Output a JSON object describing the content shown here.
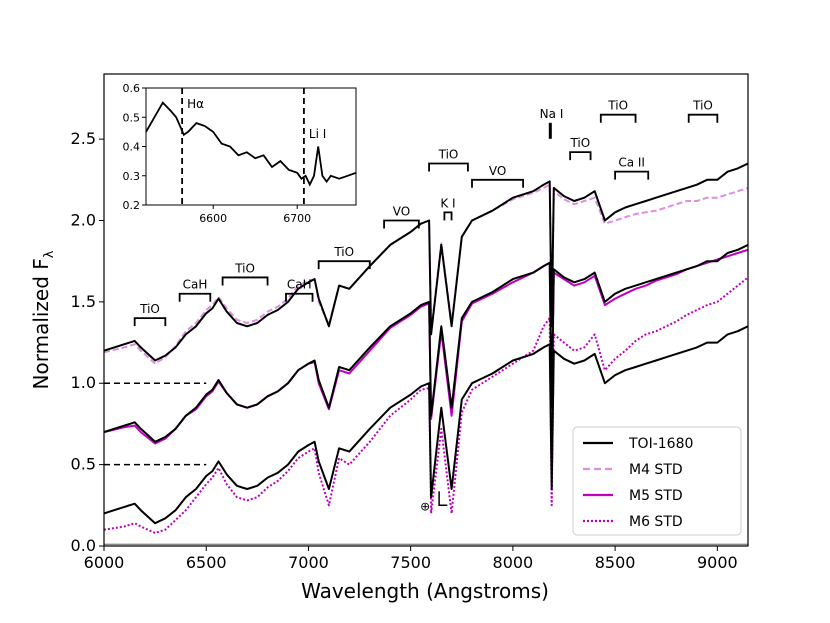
{
  "chart_data": {
    "type": "line",
    "xlabel": "Wavelength (Angstroms)",
    "ylabel": "Normalized F",
    "ylabel_sub": "λ",
    "xlim": [
      6000,
      9150
    ],
    "ylim": [
      0.0,
      2.9
    ],
    "xticks": [
      6000,
      6500,
      7000,
      7500,
      8000,
      8500,
      9000
    ],
    "yticks": [
      0.0,
      0.5,
      1.0,
      1.5,
      2.0,
      2.5
    ],
    "xtick_labels": [
      "6000",
      "6500",
      "7000",
      "7500",
      "8000",
      "8500",
      "9000"
    ],
    "ytick_labels": [
      "0.0",
      "0.5",
      "1.0",
      "1.5",
      "2.0",
      "2.5"
    ],
    "legend": {
      "placement": "lower-right",
      "entries": [
        {
          "label": "TOI-1680",
          "color": "#000000",
          "style": "solid"
        },
        {
          "label": "M4 STD",
          "color": "#dd8ee0",
          "style": "dashed"
        },
        {
          "label": "M5 STD",
          "color": "#c000c0",
          "style": "solid"
        },
        {
          "label": "M6 STD",
          "color": "#c000c0",
          "style": "dotted"
        }
      ]
    },
    "series_x": [
      6000,
      6100,
      6150,
      6180,
      6250,
      6300,
      6350,
      6400,
      6450,
      6500,
      6530,
      6560,
      6600,
      6650,
      6700,
      6750,
      6800,
      6850,
      6900,
      6950,
      7000,
      7030,
      7050,
      7100,
      7150,
      7200,
      7300,
      7400,
      7500,
      7550,
      7590,
      7600,
      7650,
      7700,
      7750,
      7800,
      7900,
      8000,
      8100,
      8150,
      8180,
      8190,
      8200,
      8250,
      8300,
      8350,
      8400,
      8450,
      8500,
      8550,
      8600,
      8650,
      8700,
      8750,
      8800,
      8850,
      8900,
      8950,
      9000,
      9050,
      9100,
      9150
    ],
    "series": [
      {
        "name": "TOI-1680",
        "offset": 0.0,
        "values": [
          0.2,
          0.24,
          0.26,
          0.22,
          0.14,
          0.17,
          0.22,
          0.3,
          0.35,
          0.43,
          0.46,
          0.52,
          0.44,
          0.37,
          0.35,
          0.37,
          0.42,
          0.45,
          0.5,
          0.58,
          0.62,
          0.64,
          0.52,
          0.35,
          0.6,
          0.58,
          0.72,
          0.85,
          0.93,
          0.98,
          1.0,
          0.3,
          0.85,
          0.35,
          0.9,
          1.0,
          1.06,
          1.14,
          1.18,
          1.22,
          1.24,
          0.35,
          1.2,
          1.15,
          1.12,
          1.14,
          1.18,
          1.0,
          1.05,
          1.08,
          1.1,
          1.12,
          1.14,
          1.16,
          1.18,
          1.2,
          1.22,
          1.25,
          1.25,
          1.3,
          1.32,
          1.35
        ]
      },
      {
        "name": "TOI-1680",
        "offset": 0.5,
        "values": [
          0.2,
          0.24,
          0.26,
          0.22,
          0.14,
          0.17,
          0.22,
          0.3,
          0.35,
          0.43,
          0.46,
          0.52,
          0.44,
          0.37,
          0.35,
          0.37,
          0.42,
          0.45,
          0.5,
          0.58,
          0.62,
          0.64,
          0.52,
          0.35,
          0.6,
          0.58,
          0.72,
          0.85,
          0.93,
          0.98,
          1.0,
          0.3,
          0.85,
          0.35,
          0.9,
          1.0,
          1.06,
          1.14,
          1.18,
          1.22,
          1.24,
          0.35,
          1.2,
          1.15,
          1.12,
          1.14,
          1.18,
          1.0,
          1.05,
          1.08,
          1.1,
          1.12,
          1.14,
          1.16,
          1.18,
          1.2,
          1.22,
          1.25,
          1.25,
          1.3,
          1.32,
          1.35
        ]
      },
      {
        "name": "TOI-1680",
        "offset": 1.0,
        "values": [
          0.2,
          0.24,
          0.26,
          0.22,
          0.14,
          0.17,
          0.22,
          0.3,
          0.35,
          0.43,
          0.46,
          0.52,
          0.44,
          0.37,
          0.35,
          0.37,
          0.42,
          0.45,
          0.5,
          0.58,
          0.62,
          0.64,
          0.52,
          0.35,
          0.6,
          0.58,
          0.72,
          0.85,
          0.93,
          0.98,
          1.0,
          0.3,
          0.85,
          0.35,
          0.9,
          1.0,
          1.06,
          1.14,
          1.18,
          1.22,
          1.24,
          0.35,
          1.2,
          1.15,
          1.12,
          1.14,
          1.18,
          1.0,
          1.05,
          1.08,
          1.1,
          1.12,
          1.14,
          1.16,
          1.18,
          1.2,
          1.22,
          1.25,
          1.25,
          1.3,
          1.32,
          1.35
        ]
      },
      {
        "name": "M4 STD",
        "offset": 1.0,
        "values": [
          0.19,
          0.22,
          0.24,
          0.2,
          0.12,
          0.16,
          0.23,
          0.32,
          0.37,
          0.45,
          0.48,
          0.53,
          0.46,
          0.39,
          0.37,
          0.39,
          0.44,
          0.47,
          0.52,
          0.6,
          0.63,
          0.64,
          0.5,
          0.36,
          0.6,
          0.58,
          0.72,
          0.85,
          0.93,
          0.98,
          1.0,
          0.32,
          0.86,
          0.37,
          0.9,
          1.0,
          1.06,
          1.13,
          1.17,
          1.2,
          1.22,
          0.35,
          1.18,
          1.13,
          1.1,
          1.12,
          1.14,
          0.98,
          1.0,
          1.02,
          1.04,
          1.05,
          1.06,
          1.08,
          1.1,
          1.12,
          1.12,
          1.14,
          1.14,
          1.16,
          1.18,
          1.2
        ]
      },
      {
        "name": "M5 STD",
        "offset": 0.5,
        "values": [
          0.2,
          0.23,
          0.24,
          0.2,
          0.13,
          0.16,
          0.22,
          0.3,
          0.34,
          0.42,
          0.45,
          0.51,
          0.44,
          0.37,
          0.35,
          0.37,
          0.42,
          0.45,
          0.5,
          0.58,
          0.62,
          0.63,
          0.5,
          0.34,
          0.58,
          0.56,
          0.7,
          0.84,
          0.92,
          0.97,
          0.99,
          0.28,
          0.82,
          0.3,
          0.88,
          0.99,
          1.05,
          1.12,
          1.18,
          1.22,
          1.24,
          0.3,
          1.18,
          1.14,
          1.1,
          1.12,
          1.16,
          0.98,
          1.02,
          1.05,
          1.08,
          1.1,
          1.13,
          1.15,
          1.17,
          1.2,
          1.22,
          1.24,
          1.26,
          1.28,
          1.3,
          1.32
        ]
      },
      {
        "name": "M6 STD",
        "offset": 0.0,
        "values": [
          0.1,
          0.12,
          0.14,
          0.12,
          0.08,
          0.1,
          0.16,
          0.22,
          0.3,
          0.38,
          0.42,
          0.48,
          0.38,
          0.3,
          0.28,
          0.3,
          0.36,
          0.4,
          0.46,
          0.54,
          0.58,
          0.6,
          0.45,
          0.25,
          0.54,
          0.5,
          0.64,
          0.8,
          0.9,
          0.96,
          0.97,
          0.2,
          0.72,
          0.2,
          0.82,
          0.96,
          1.04,
          1.12,
          1.2,
          1.35,
          1.4,
          0.25,
          1.3,
          1.25,
          1.2,
          1.22,
          1.3,
          1.08,
          1.15,
          1.2,
          1.26,
          1.3,
          1.32,
          1.35,
          1.38,
          1.42,
          1.45,
          1.48,
          1.5,
          1.55,
          1.6,
          1.65
        ]
      }
    ],
    "reference_lines": [
      {
        "y": 1.0,
        "x": [
          6000,
          6500
        ],
        "style": "dashed"
      },
      {
        "y": 0.5,
        "x": [
          6000,
          6500
        ],
        "style": "dashed"
      }
    ],
    "annotations": [
      {
        "label": "TiO",
        "x": [
          6150,
          6300
        ],
        "y": 1.4
      },
      {
        "label": "CaH",
        "x": [
          6370,
          6520
        ],
        "y": 1.55
      },
      {
        "label": "TiO",
        "x": [
          6580,
          6800
        ],
        "y": 1.65
      },
      {
        "label": "CaH",
        "x": [
          6890,
          7020
        ],
        "y": 1.55
      },
      {
        "label": "TiO",
        "x": [
          7050,
          7300
        ],
        "y": 1.75
      },
      {
        "label": "VO",
        "x": [
          7370,
          7540
        ],
        "y": 2.0
      },
      {
        "label": "TiO",
        "x": [
          7590,
          7780
        ],
        "y": 2.35
      },
      {
        "label": "VO",
        "x": [
          7800,
          8050
        ],
        "y": 2.25
      },
      {
        "label": "K I",
        "x": [
          7665,
          7700
        ],
        "y": 2.05
      },
      {
        "label": "Na I",
        "x": [
          8183,
          8195
        ],
        "y": 2.6
      },
      {
        "label": "TiO",
        "x": [
          8280,
          8380
        ],
        "y": 2.42
      },
      {
        "label": "TiO",
        "x": [
          8430,
          8600
        ],
        "y": 2.65
      },
      {
        "label": "Ca II",
        "x": [
          8500,
          8662
        ],
        "y": 2.3
      },
      {
        "label": "TiO",
        "x": [
          8860,
          9000
        ],
        "y": 2.65
      },
      {
        "label": "⊕",
        "x": [
          7600,
          7650
        ],
        "y": 0.25
      }
    ],
    "inset": {
      "xlim": [
        6520,
        6770
      ],
      "ylim": [
        0.2,
        0.6
      ],
      "xticks": [
        6600,
        6700
      ],
      "yticks": [
        0.2,
        0.3,
        0.4,
        0.5,
        0.6
      ],
      "xtick_labels": [
        "6600",
        "6700"
      ],
      "ytick_labels": [
        "0.2",
        "0.3",
        "0.4",
        "0.5",
        "0.6"
      ],
      "x": [
        6520,
        6530,
        6540,
        6550,
        6556,
        6562,
        6565,
        6570,
        6580,
        6590,
        6600,
        6610,
        6620,
        6630,
        6640,
        6650,
        6660,
        6670,
        6680,
        6690,
        6700,
        6705,
        6710,
        6715,
        6720,
        6725,
        6730,
        6735,
        6740,
        6750,
        6760,
        6770
      ],
      "y": [
        0.45,
        0.5,
        0.55,
        0.52,
        0.5,
        0.46,
        0.44,
        0.45,
        0.48,
        0.47,
        0.45,
        0.41,
        0.4,
        0.37,
        0.38,
        0.36,
        0.37,
        0.33,
        0.35,
        0.32,
        0.31,
        0.29,
        0.3,
        0.27,
        0.3,
        0.4,
        0.3,
        0.28,
        0.3,
        0.29,
        0.3,
        0.31
      ],
      "vlines": [
        {
          "x": 6563,
          "label": "Hα"
        },
        {
          "x": 6708,
          "label": "Li I"
        }
      ]
    }
  }
}
